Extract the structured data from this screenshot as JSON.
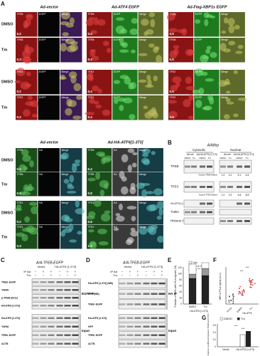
{
  "panel_labels": [
    "A",
    "B",
    "C",
    "D",
    "E",
    "F",
    "G"
  ],
  "a_top": {
    "columns": [
      "Ad-vector",
      "Ad-ATF4 EGFP",
      "Ad-Flag-XBP1s EGFP"
    ],
    "rows": [
      "DMSO",
      "Tm",
      "DMSO",
      "Tm"
    ],
    "channels": [
      [
        "TFEB",
        "EGFP",
        "Merge"
      ],
      [
        "TFEB",
        "EGFP",
        "Merge"
      ],
      [
        "TFE3",
        "EGFP",
        "Merge"
      ],
      [
        "TFE3",
        "EGFP",
        "Merge"
      ]
    ],
    "values": [
      [
        "0.2",
        "0.4",
        "0.5"
      ],
      [
        "0.2",
        "0.4",
        "0.5"
      ],
      [
        "0.2",
        "0.4",
        "0.5"
      ],
      [
        "0.2",
        "0.4",
        "0.5"
      ]
    ]
  },
  "a_bottom": {
    "columns": [
      "Ad-vector",
      "Ad-HA-ATF6[1-373]"
    ],
    "rows": [
      "DMSO",
      "Tm",
      "DMSO",
      "Tm"
    ],
    "channels": [
      [
        "TFEB",
        "HA",
        "Merge"
      ],
      [
        "TFEB",
        "HA",
        "Merge"
      ],
      [
        "TFE3",
        "HA",
        "Merge"
      ],
      [
        "TFE3",
        "HA",
        "Merge"
      ]
    ],
    "values": [
      [
        "0.2",
        "0.4"
      ],
      [
        "0.2",
        "0.8"
      ],
      [
        "0.2",
        "0.8"
      ],
      [
        "0.3",
        "1.2"
      ]
    ]
  },
  "b": {
    "title": "A/Atfep",
    "fractions": [
      "Cytosolic",
      "Nuclear"
    ],
    "groups": [
      "Ad-vec",
      "Ad-HA-ATF6 [1-373]",
      "Ad-vec",
      "Ad-HA-ATF6 [1-373]"
    ],
    "lanes": [
      "DMSO",
      "Tm",
      "DMSO",
      "Tm",
      "DMSO",
      "Tm",
      "DMSO",
      "Tm"
    ],
    "rows": [
      "TFEB",
      "TFE3",
      "HA-ATF6 [1-373]",
      "TUBA",
      "Histone H3"
    ],
    "tfeb_ratio_label": "Nuclear TFEB Relative",
    "tfeb_ratios": [
      "1.0",
      "3.1",
      "5.1",
      "6.4"
    ],
    "tfe3_ratio_label": "Nuclear TFE3 Relative",
    "tfe3_ratios": [
      "1.0",
      "2.9",
      "5.8",
      "8.8"
    ]
  },
  "c": {
    "title": "A/A-TFEB-EGFP",
    "groups": [
      "Vector",
      "HA-ATF6 [1-373]"
    ],
    "row_heads": [
      "IP Ab:",
      "Tm:"
    ],
    "ip_rows": [
      "TFEB -EGFP",
      "YWHA",
      "p-TFEB (S211)",
      "HA-ATF6 [1-373]"
    ],
    "ip_label": "EGFP IP",
    "input_rows": [
      "HA-ATF6 [1-373]",
      "YWHA",
      "TFEB -EGFP",
      "ACTB"
    ],
    "input_label": "Input"
  },
  "d": {
    "title": "A/A-TFEB-EGFP",
    "groups": [
      "Vector",
      "HA-ATF6 [1-373]"
    ],
    "row_heads": [
      "IP Ab:",
      "Tm:"
    ],
    "ip_rows": [
      "HA-ATF6 [1-373] (WB)",
      "GFP (WB)",
      "TFEB -EGFP"
    ],
    "ip_label": "HA IP",
    "input_rows": [
      "HA-ATF6 [1-373]",
      "GFP",
      "TFEB -EGFP",
      "ACTB"
    ],
    "input_label": "Input"
  },
  "e": {
    "y_label": "Fraction of cells with PLA signals (%)",
    "legend": [
      "Cyto",
      "Nuc & Cyto",
      "Nuc"
    ],
    "yticks": [
      "0",
      "20",
      "40",
      "60",
      "80",
      "100",
      "120"
    ],
    "x": [
      "DMSO",
      "Tm"
    ],
    "group": "HA-ATF6 [1-373]",
    "sig": "***"
  },
  "f": {
    "y_label": "MFI of PLA signal (a.u.)",
    "x": [
      "Vector",
      "DMSO",
      "Tm"
    ],
    "group": "HA-ATF6",
    "sig": [
      "***",
      "***"
    ]
  },
  "g": {
    "legend": [
      "DMSO",
      "Tm"
    ],
    "y_label": "Correlation coefficient between TFEB and ATF6",
    "x": [
      "Vector",
      "HA-ATF6 [1-373]"
    ],
    "sig": [
      "***",
      "***"
    ],
    "yticks": [
      "0",
      "0.2",
      "0.4",
      "0.6"
    ]
  }
}
